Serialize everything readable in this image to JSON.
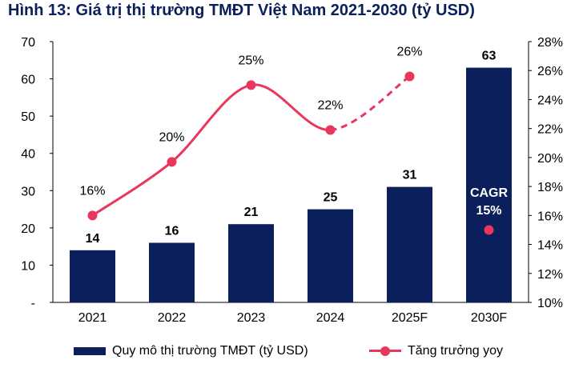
{
  "title": "Hình 13: Giá trị thị trường TMĐT Việt Nam 2021-2030 (tỷ USD)",
  "colors": {
    "bar": "#0a1f5c",
    "line": "#e8365d",
    "axis": "#000000",
    "cagr_text": "#ffffff"
  },
  "chart_data": {
    "type": "bar+line",
    "categories": [
      "2021",
      "2022",
      "2023",
      "2024",
      "2025F",
      "2030F"
    ],
    "left_axis": {
      "min": 0,
      "max": 70,
      "ticks": [
        "-",
        "10",
        "20",
        "30",
        "40",
        "50",
        "60",
        "70"
      ]
    },
    "right_axis": {
      "min": 10,
      "max": 28,
      "ticks": [
        "10%",
        "12%",
        "14%",
        "16%",
        "18%",
        "20%",
        "22%",
        "24%",
        "26%",
        "28%"
      ]
    },
    "series": [
      {
        "name": "Quy mô thị trường TMĐT (tỷ USD)",
        "type": "bar",
        "axis": "left",
        "values": [
          14,
          16,
          21,
          25,
          31,
          63
        ],
        "labels": [
          "14",
          "16",
          "21",
          "25",
          "31",
          "63"
        ]
      },
      {
        "name": "Tăng trưởng yoy",
        "type": "line",
        "axis": "right",
        "values": [
          16,
          19.7,
          25,
          21.9,
          25.6,
          15
        ],
        "labels": [
          "16%",
          "20%",
          "25%",
          "22%",
          "26%",
          "CAGR 15%"
        ],
        "dashed_from_index": 3,
        "standalone_index": 5
      }
    ],
    "cagr_label_lines": [
      "CAGR",
      "15%"
    ]
  },
  "legend": {
    "bar_label": "Quy mô thị trường TMĐT (tỷ USD)",
    "line_label": "Tăng trưởng yoy"
  }
}
